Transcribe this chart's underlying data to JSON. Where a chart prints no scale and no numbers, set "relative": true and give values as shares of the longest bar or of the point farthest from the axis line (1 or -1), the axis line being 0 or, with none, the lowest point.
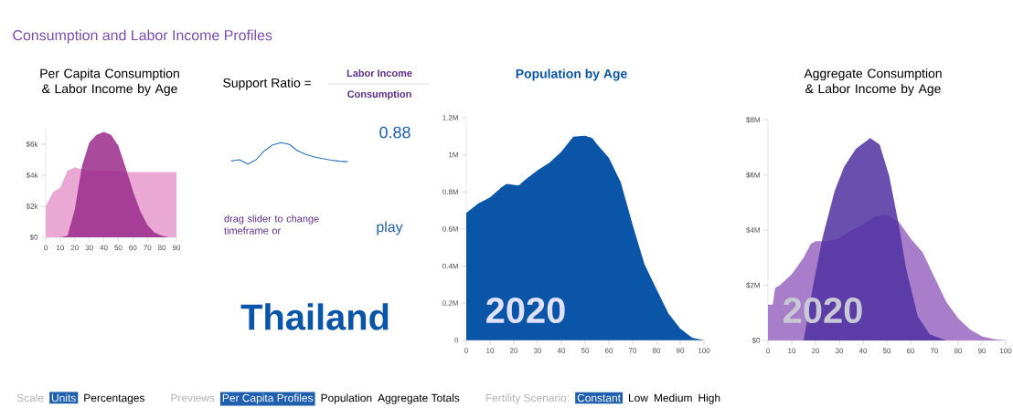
{
  "chart_data": [
    {
      "type": "area",
      "title": "Per Capita Consumption & Labor Income by Age",
      "x": [
        0,
        5,
        10,
        15,
        20,
        25,
        30,
        35,
        40,
        45,
        50,
        55,
        60,
        65,
        70,
        75,
        80,
        85,
        90
      ],
      "series": [
        {
          "color": "#eaa9d4",
          "values": [
            2000,
            2900,
            3200,
            4300,
            4500,
            4400,
            4300,
            4300,
            4300,
            4300,
            4300,
            4200,
            4200,
            4200,
            4200,
            4200,
            4200,
            4200,
            4200
          ]
        },
        {
          "color": "#9a2a8c",
          "values": [
            0,
            0,
            0,
            100,
            1800,
            4600,
            6100,
            6600,
            6800,
            6600,
            5900,
            4500,
            3000,
            1700,
            800,
            300,
            100,
            0,
            0
          ]
        }
      ],
      "xlim": [
        0,
        90
      ],
      "ylim": [
        0,
        7000
      ],
      "xticks": [
        0,
        10,
        20,
        30,
        40,
        50,
        60,
        70,
        80,
        90
      ],
      "yticks": [
        {
          "value": 0,
          "label": "$0"
        },
        {
          "value": 2000,
          "label": "$2k"
        },
        {
          "value": 4000,
          "label": "$4k"
        },
        {
          "value": 6000,
          "label": "$6k"
        }
      ]
    },
    {
      "type": "line",
      "title": "Support Ratio =",
      "relative": true,
      "categories": [
        null,
        null,
        null,
        null,
        null,
        null,
        null,
        null,
        null,
        null,
        null,
        null,
        null,
        null,
        null
      ],
      "series": [
        {
          "color": "#2a6fb5",
          "values": [
            0.14,
            0.2,
            0,
            0.2,
            0.62,
            0.9,
            1,
            0.92,
            0.62,
            0.45,
            0.33,
            0.25,
            0.18,
            0.13,
            0.11
          ]
        }
      ],
      "annotations": [
        "Labor Income",
        "Consumption",
        "0.88",
        "drag slider to change timeframe or",
        "play",
        "Thailand"
      ]
    },
    {
      "type": "area",
      "title": "Population by Age",
      "x": [
        0,
        5,
        10,
        15,
        17,
        22,
        25,
        30,
        35,
        40,
        45,
        50,
        53,
        55,
        60,
        65,
        70,
        75,
        80,
        85,
        90,
        95,
        100
      ],
      "series": [
        {
          "color": "#0a55a8",
          "values": [
            687000,
            737000,
            770000,
            827000,
            843000,
            835000,
            868000,
            917000,
            958000,
            1016000,
            1098000,
            1103000,
            1090000,
            1057000,
            983000,
            852000,
            621000,
            408000,
            276000,
            145000,
            62000,
            13000,
            0
          ]
        }
      ],
      "xlim": [
        0,
        100
      ],
      "ylim": [
        0,
        1200000
      ],
      "xticks": [
        0,
        10,
        20,
        30,
        40,
        50,
        60,
        70,
        80,
        90,
        100
      ],
      "yticks": [
        0,
        {
          "value": 200000,
          "label": "0.2M"
        },
        {
          "value": 400000,
          "label": "0.4M"
        },
        {
          "value": 600000,
          "label": "0.6M"
        },
        {
          "value": 800000,
          "label": "0.8M"
        },
        {
          "value": 1000000,
          "label": "1M"
        },
        {
          "value": 1200000,
          "label": "1.2M"
        }
      ],
      "annotations": [
        "2020"
      ]
    },
    {
      "type": "area",
      "title": "Aggregate Consumption & Labor Income by Age",
      "series": [
        {
          "color": "#a87dca",
          "x": [
            0,
            2,
            3,
            5,
            10,
            15,
            18,
            20,
            25,
            30,
            35,
            40,
            45,
            50,
            55,
            60,
            65,
            70,
            75,
            80,
            85,
            90,
            95,
            100
          ],
          "values": [
            1300000,
            1300000,
            1900000,
            2000000,
            2400000,
            3000000,
            3500000,
            3600000,
            3600000,
            3700000,
            4000000,
            4200000,
            4500000,
            4550000,
            4300000,
            3700000,
            3200000,
            2300000,
            1400000,
            800000,
            400000,
            150000,
            50000,
            0
          ]
        },
        {
          "color": "#4f30a0",
          "x": [
            0,
            14,
            15,
            19,
            23,
            28,
            32,
            37,
            43,
            47,
            51,
            55,
            58,
            63,
            68,
            75,
            100
          ],
          "values": [
            0,
            0,
            0,
            2000000,
            3750000,
            5400000,
            6300000,
            6950000,
            7340000,
            7100000,
            5960000,
            4200000,
            2650000,
            880000,
            220000,
            0,
            0
          ]
        }
      ],
      "xlim": [
        0,
        100
      ],
      "ylim": [
        0,
        8000000
      ],
      "xticks": [
        0,
        10,
        20,
        30,
        40,
        50,
        60,
        70,
        80,
        90,
        100
      ],
      "yticks": [
        {
          "value": 0,
          "label": "$0"
        },
        {
          "value": 2000000,
          "label": "$2M"
        },
        {
          "value": 4000000,
          "label": "$4M"
        },
        {
          "value": 6000000,
          "label": "$6M"
        },
        {
          "value": 8000000,
          "label": "$8M"
        }
      ],
      "annotations": [
        "2020"
      ]
    },
    {
      "type": "other",
      "title": "Consumption and Labor Income Profiles",
      "annotations": [
        "Scale",
        "Units",
        "Percentages",
        "Previews",
        "Per Capita Profiles",
        "Population",
        "Aggregate Totals",
        "Fertility Scenario:",
        "Constant",
        "Low",
        "Medium",
        "High"
      ]
    }
  ]
}
